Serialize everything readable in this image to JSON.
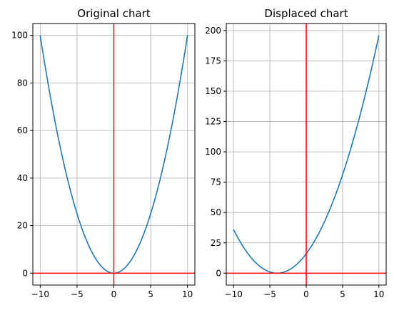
{
  "chart_data": [
    {
      "type": "line",
      "title": "Original chart",
      "xlabel": "",
      "ylabel": "",
      "xlim": [
        -11,
        11
      ],
      "ylim": [
        -5,
        105
      ],
      "xticks": [
        -10,
        -5,
        0,
        5,
        10
      ],
      "yticks": [
        0,
        20,
        40,
        60,
        80,
        100
      ],
      "xtick_labels": [
        "−10",
        "−5",
        "0",
        "5",
        "10"
      ],
      "ytick_labels": [
        "0",
        "20",
        "40",
        "60",
        "80",
        "100"
      ],
      "grid": true,
      "reference_lines": {
        "x": 0,
        "y": 0,
        "color": "#ff0000"
      },
      "series": [
        {
          "color": "#1f77b4",
          "x": [
            -10,
            -9,
            -8,
            -7,
            -6,
            -5,
            -4,
            -3,
            -2,
            -1,
            0,
            1,
            2,
            3,
            4,
            5,
            6,
            7,
            8,
            9,
            10
          ],
          "y": [
            100,
            81,
            64,
            49,
            36,
            25,
            16,
            9,
            4,
            1,
            0,
            1,
            4,
            9,
            16,
            25,
            36,
            49,
            64,
            81,
            100
          ]
        }
      ]
    },
    {
      "type": "line",
      "title": "Displaced chart",
      "xlabel": "",
      "ylabel": "",
      "xlim": [
        -11,
        11
      ],
      "ylim": [
        -9.8,
        205.8
      ],
      "xticks": [
        -10,
        -5,
        0,
        5,
        10
      ],
      "yticks": [
        0,
        25,
        50,
        75,
        100,
        125,
        150,
        175,
        200
      ],
      "xtick_labels": [
        "−10",
        "−5",
        "0",
        "5",
        "10"
      ],
      "ytick_labels": [
        "0",
        "25",
        "50",
        "75",
        "100",
        "125",
        "150",
        "175",
        "200"
      ],
      "grid": true,
      "reference_lines": {
        "x": 0,
        "y": 0,
        "color": "#ff0000"
      },
      "series": [
        {
          "color": "#1f77b4",
          "x": [
            -10,
            -9,
            -8,
            -7,
            -6,
            -5,
            -4,
            -3,
            -2,
            -1,
            0,
            1,
            2,
            3,
            4,
            5,
            6,
            7,
            8,
            9,
            10
          ],
          "y": [
            36,
            25,
            16,
            9,
            4,
            1,
            0,
            1,
            4,
            9,
            16,
            25,
            36,
            49,
            64,
            81,
            100,
            121,
            144,
            169,
            196
          ]
        }
      ]
    }
  ]
}
